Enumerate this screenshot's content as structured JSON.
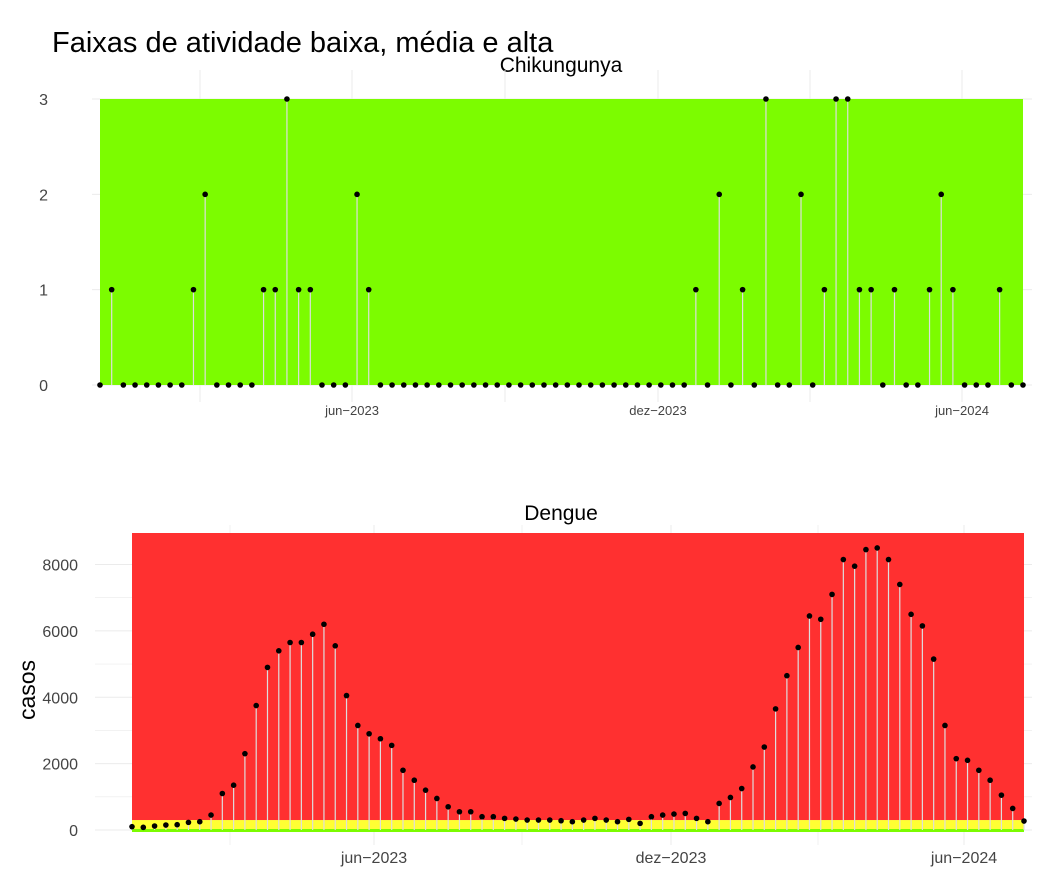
{
  "title": "Faixas de atividade baixa, média e alta",
  "colors": {
    "chik_band": "#7cfc00",
    "dengue_band_high": "#ff3030",
    "dengue_band_mid": "#ffff33",
    "dengue_band_low": "#7cfc00",
    "stem": "#dddddd",
    "point": "#000000",
    "grid": "#ebebeb",
    "tick_text": "#444444"
  },
  "chart_data": [
    {
      "type": "lollipop",
      "title": "Chikungunya",
      "xlabel": "",
      "ylabel": "",
      "x_tick_labels": [
        "jun−2023",
        "dez−2023",
        "jun−2024"
      ],
      "y_ticks": [
        0,
        1,
        2,
        3
      ],
      "ylim": [
        0,
        3
      ],
      "grid": true,
      "values": [
        0,
        1,
        0,
        0,
        0,
        0,
        0,
        0,
        1,
        2,
        0,
        0,
        0,
        0,
        1,
        1,
        3,
        1,
        1,
        0,
        0,
        0,
        2,
        1,
        0,
        0,
        0,
        0,
        0,
        0,
        0,
        0,
        0,
        0,
        0,
        0,
        0,
        0,
        0,
        0,
        0,
        0,
        0,
        0,
        0,
        0,
        0,
        0,
        0,
        0,
        0,
        1,
        0,
        2,
        0,
        1,
        0,
        3,
        0,
        0,
        2,
        0,
        1,
        3,
        3,
        1,
        1,
        0,
        1,
        0,
        0,
        1,
        2,
        1,
        0,
        0,
        0,
        1,
        0,
        0
      ],
      "bands": [
        {
          "label": "baixa",
          "from": 0,
          "to": 3
        }
      ]
    },
    {
      "type": "lollipop",
      "title": "Dengue",
      "xlabel": "",
      "ylabel": "casos",
      "x_tick_labels": [
        "jun−2023",
        "dez−2023",
        "jun−2024"
      ],
      "y_ticks": [
        0,
        2000,
        4000,
        6000,
        8000
      ],
      "ylim": [
        0,
        8950
      ],
      "grid": true,
      "values": [
        100,
        80,
        120,
        150,
        160,
        230,
        250,
        450,
        1100,
        1350,
        2300,
        3750,
        4900,
        5400,
        5650,
        5650,
        5900,
        6200,
        5550,
        4050,
        3150,
        2900,
        2750,
        2550,
        1800,
        1500,
        1200,
        950,
        700,
        550,
        550,
        400,
        400,
        350,
        330,
        300,
        300,
        300,
        280,
        250,
        300,
        350,
        300,
        250,
        320,
        200,
        400,
        450,
        480,
        500,
        350,
        250,
        800,
        980,
        1250,
        1900,
        2500,
        3650,
        4650,
        5500,
        6450,
        6350,
        7100,
        8150,
        7950,
        8450,
        8500,
        8150,
        7400,
        6500,
        6150,
        5150,
        3150,
        2150,
        2100,
        1800,
        1500,
        1050,
        650,
        270
      ],
      "bands": [
        {
          "label": "baixa",
          "from": 0,
          "to": 30
        },
        {
          "label": "média",
          "from": 30,
          "to": 300
        },
        {
          "label": "alta",
          "from": 300,
          "to": 8950
        }
      ]
    }
  ]
}
